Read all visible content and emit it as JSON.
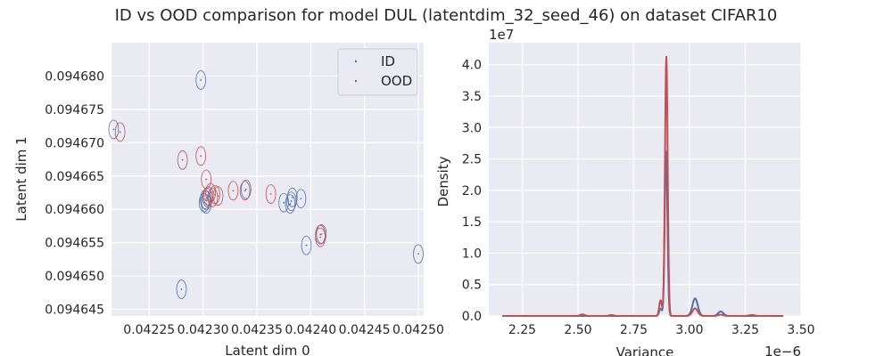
{
  "figure": {
    "suptitle": "ID vs OOD comparison for model DUL (latentdim_32_seed_46) on dataset CIFAR10"
  },
  "colors": {
    "background": "#eaeaf2",
    "grid": "#ffffff",
    "id": "#4c72b0",
    "ood": "#c44e52",
    "text": "#262626"
  },
  "chart_data": [
    {
      "type": "scatter",
      "xlabel": "Latent dim 0",
      "ylabel": "Latent dim 1",
      "xlim": [
        0.042215,
        0.042505
      ],
      "ylim": [
        0.094644,
        0.094685
      ],
      "x_ticks": [
        0.04225,
        0.0423,
        0.04235,
        0.0424,
        0.04245,
        0.0425
      ],
      "x_tick_labels": [
        "0.04225",
        "0.04230",
        "0.04235",
        "0.04240",
        "0.04245",
        "0.04250"
      ],
      "y_ticks": [
        0.094645,
        0.09465,
        0.094655,
        0.09466,
        0.094665,
        0.09467,
        0.094675,
        0.09468
      ],
      "y_tick_labels": [
        "0.094645",
        "0.094650",
        "0.094655",
        "0.094660",
        "0.094665",
        "0.094670",
        "0.094675",
        "0.094680"
      ],
      "grid": true,
      "legend": {
        "placement": "top-right",
        "entries": [
          {
            "label": "ID",
            "color": "#4c72b0"
          },
          {
            "label": "OOD",
            "color": "#c44e52"
          }
        ]
      },
      "series": [
        {
          "name": "ID",
          "color": "#4c72b0",
          "points": [
            {
              "x": 0.042217,
              "y": 0.094672,
              "rx": 4.5e-06,
              "ry": 1.4e-06
            },
            {
              "x": 0.042298,
              "y": 0.0946794,
              "rx": 4.5e-06,
              "ry": 1.4e-06
            },
            {
              "x": 0.042301,
              "y": 0.094661,
              "rx": 4.5e-06,
              "ry": 1.4e-06
            },
            {
              "x": 0.042302,
              "y": 0.0946615,
              "rx": 4.5e-06,
              "ry": 1.4e-06
            },
            {
              "x": 0.042303,
              "y": 0.0946608,
              "rx": 4.5e-06,
              "ry": 1.4e-06
            },
            {
              "x": 0.042303,
              "y": 0.0946613,
              "rx": 4.5e-06,
              "ry": 1.4e-06
            },
            {
              "x": 0.042304,
              "y": 0.0946618,
              "rx": 4.5e-06,
              "ry": 1.4e-06
            },
            {
              "x": 0.04234,
              "y": 0.094663,
              "rx": 4.5e-06,
              "ry": 1.4e-06
            },
            {
              "x": 0.042375,
              "y": 0.094661,
              "rx": 4.5e-06,
              "ry": 1.4e-06
            },
            {
              "x": 0.042381,
              "y": 0.0946608,
              "rx": 4.5e-06,
              "ry": 1.4e-06
            },
            {
              "x": 0.042382,
              "y": 0.0946612,
              "rx": 4.5e-06,
              "ry": 1.4e-06
            },
            {
              "x": 0.042383,
              "y": 0.0946618,
              "rx": 4.5e-06,
              "ry": 1.4e-06
            },
            {
              "x": 0.042391,
              "y": 0.0946616,
              "rx": 4.5e-06,
              "ry": 1.4e-06
            },
            {
              "x": 0.042396,
              "y": 0.0946546,
              "rx": 4.5e-06,
              "ry": 1.4e-06
            },
            {
              "x": 0.042409,
              "y": 0.0946562,
              "rx": 4.5e-06,
              "ry": 1.4e-06
            },
            {
              "x": 0.0425,
              "y": 0.0946533,
              "rx": 4.5e-06,
              "ry": 1.4e-06
            },
            {
              "x": 0.04228,
              "y": 0.094648,
              "rx": 4.5e-06,
              "ry": 1.4e-06
            }
          ]
        },
        {
          "name": "OOD",
          "color": "#c44e52",
          "points": [
            {
              "x": 0.042223,
              "y": 0.0946716,
              "rx": 4.5e-06,
              "ry": 1.4e-06
            },
            {
              "x": 0.042281,
              "y": 0.0946674,
              "rx": 4.5e-06,
              "ry": 1.4e-06
            },
            {
              "x": 0.042298,
              "y": 0.094668,
              "rx": 4.5e-06,
              "ry": 1.4e-06
            },
            {
              "x": 0.042303,
              "y": 0.0946645,
              "rx": 4.5e-06,
              "ry": 1.4e-06
            },
            {
              "x": 0.042305,
              "y": 0.094662,
              "rx": 4.5e-06,
              "ry": 1.4e-06
            },
            {
              "x": 0.042307,
              "y": 0.0946625,
              "rx": 4.5e-06,
              "ry": 1.4e-06
            },
            {
              "x": 0.042309,
              "y": 0.0946618,
              "rx": 4.5e-06,
              "ry": 1.4e-06
            },
            {
              "x": 0.042311,
              "y": 0.0946622,
              "rx": 4.5e-06,
              "ry": 1.4e-06
            },
            {
              "x": 0.042314,
              "y": 0.094662,
              "rx": 4.5e-06,
              "ry": 1.4e-06
            },
            {
              "x": 0.042328,
              "y": 0.0946628,
              "rx": 4.5e-06,
              "ry": 1.4e-06
            },
            {
              "x": 0.042339,
              "y": 0.0946628,
              "rx": 4.5e-06,
              "ry": 1.4e-06
            },
            {
              "x": 0.042363,
              "y": 0.0946623,
              "rx": 4.5e-06,
              "ry": 1.4e-06
            },
            {
              "x": 0.042409,
              "y": 0.0946558,
              "rx": 4.5e-06,
              "ry": 1.4e-06
            },
            {
              "x": 0.04241,
              "y": 0.0946563,
              "rx": 4.5e-06,
              "ry": 1.4e-06
            }
          ]
        }
      ]
    },
    {
      "type": "line",
      "subtype": "kde",
      "xlabel": "Variance",
      "ylabel": "Density",
      "x_scale_label": "1e−6",
      "y_scale_label": "1e7",
      "xlim": [
        2.1,
        3.5
      ],
      "ylim": [
        0,
        4.35
      ],
      "x_ticks": [
        2.25,
        2.5,
        2.75,
        3.0,
        3.25,
        3.5
      ],
      "x_tick_labels": [
        "2.25",
        "2.50",
        "2.75",
        "3.00",
        "3.25",
        "3.50"
      ],
      "y_ticks": [
        0.0,
        0.5,
        1.0,
        1.5,
        2.0,
        2.5,
        3.0,
        3.5,
        4.0
      ],
      "y_tick_labels": [
        "0.0",
        "0.5",
        "1.0",
        "1.5",
        "2.0",
        "2.5",
        "3.0",
        "3.5",
        "4.0"
      ],
      "grid": true,
      "series": [
        {
          "name": "ID",
          "color": "#4c72b0",
          "x_range": [
            2.16,
            3.42
          ],
          "peaks": [
            {
              "center": 2.895,
              "height": 2.63,
              "width": 0.006
            },
            {
              "center": 2.87,
              "height": 0.12,
              "width": 0.006
            },
            {
              "center": 3.025,
              "height": 0.28,
              "width": 0.012
            },
            {
              "center": 3.14,
              "height": 0.07,
              "width": 0.012
            },
            {
              "center": 3.28,
              "height": 0.015,
              "width": 0.012
            }
          ]
        },
        {
          "name": "OOD",
          "color": "#c44e52",
          "x_range": [
            2.16,
            3.42
          ],
          "peaks": [
            {
              "center": 2.896,
              "height": 4.13,
              "width": 0.006
            },
            {
              "center": 2.87,
              "height": 0.25,
              "width": 0.006
            },
            {
              "center": 3.025,
              "height": 0.12,
              "width": 0.012
            },
            {
              "center": 2.52,
              "height": 0.025,
              "width": 0.01
            },
            {
              "center": 2.65,
              "height": 0.015,
              "width": 0.01
            },
            {
              "center": 3.14,
              "height": 0.02,
              "width": 0.012
            }
          ]
        }
      ]
    }
  ]
}
